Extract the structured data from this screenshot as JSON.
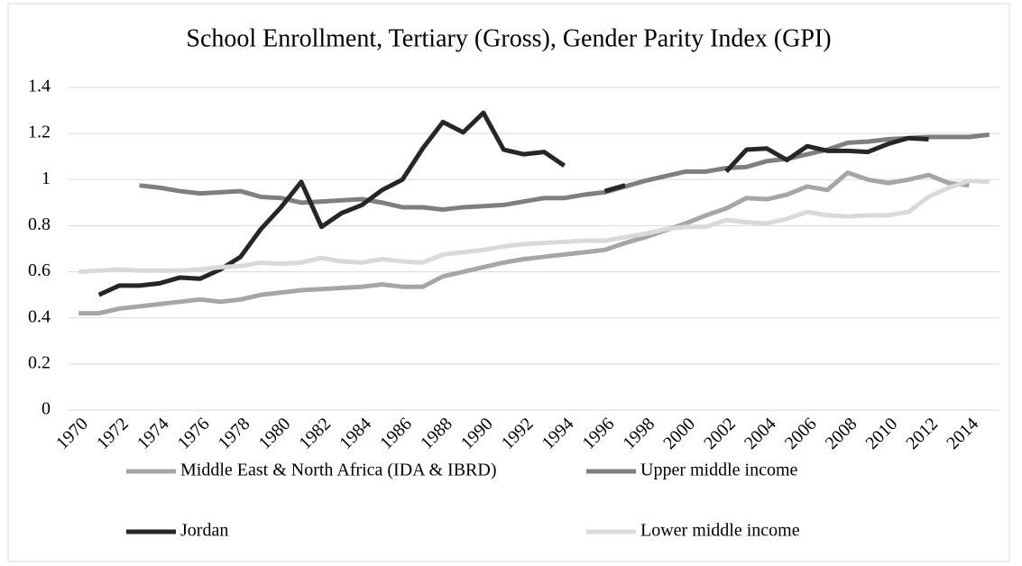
{
  "chart_data": {
    "type": "line",
    "title": "School Enrollment, Tertiary (Gross), Gender Parity Index (GPI)",
    "x": [
      1970,
      1971,
      1972,
      1973,
      1974,
      1975,
      1976,
      1977,
      1978,
      1979,
      1980,
      1981,
      1982,
      1983,
      1984,
      1985,
      1986,
      1987,
      1988,
      1989,
      1990,
      1991,
      1992,
      1993,
      1994,
      1995,
      1996,
      1997,
      1998,
      1999,
      2000,
      2001,
      2002,
      2003,
      2004,
      2005,
      2006,
      2007,
      2008,
      2009,
      2010,
      2011,
      2012,
      2013,
      2014,
      2015
    ],
    "xlim": [
      1969.5,
      2015.5
    ],
    "xticks": [
      1970,
      1972,
      1974,
      1976,
      1978,
      1980,
      1982,
      1984,
      1986,
      1988,
      1990,
      1992,
      1994,
      1996,
      1998,
      2000,
      2002,
      2004,
      2006,
      2008,
      2010,
      2012,
      2014
    ],
    "ylim": [
      0,
      1.4
    ],
    "yticks": [
      0,
      0.2,
      0.4,
      0.6,
      0.8,
      1,
      1.2,
      1.4
    ],
    "grid": true,
    "legend": "bottom",
    "series": [
      {
        "name": "Middle East & North Africa (IDA & IBRD)",
        "color": "#a6a6a6",
        "values": [
          0.42,
          0.42,
          0.44,
          0.45,
          0.46,
          0.47,
          0.48,
          0.47,
          0.48,
          0.5,
          0.51,
          0.52,
          0.525,
          0.53,
          0.535,
          0.545,
          0.535,
          0.535,
          0.58,
          0.6,
          0.62,
          0.64,
          0.655,
          0.665,
          0.675,
          0.685,
          0.695,
          0.725,
          0.75,
          0.78,
          0.81,
          0.845,
          0.875,
          0.92,
          0.915,
          0.935,
          0.97,
          0.955,
          1.03,
          1.0,
          0.985,
          1.0,
          1.02,
          0.985,
          0.975,
          null
        ]
      },
      {
        "name": "Upper middle income",
        "color": "#7f7f7f",
        "values": [
          null,
          null,
          null,
          0.975,
          0.965,
          0.95,
          0.94,
          0.945,
          0.95,
          0.925,
          0.92,
          0.9,
          0.905,
          0.91,
          0.915,
          0.9,
          0.88,
          0.88,
          0.87,
          0.88,
          0.885,
          0.89,
          0.905,
          0.92,
          0.92,
          0.935,
          0.945,
          0.97,
          0.995,
          1.015,
          1.035,
          1.035,
          1.05,
          1.055,
          1.08,
          1.09,
          1.11,
          1.13,
          1.16,
          1.165,
          1.175,
          1.18,
          1.185,
          1.185,
          1.185,
          1.195
        ]
      },
      {
        "name": "Jordan",
        "color": "#262626",
        "values": [
          null,
          0.5,
          0.54,
          0.54,
          0.55,
          0.575,
          0.57,
          0.61,
          0.665,
          0.785,
          0.88,
          0.99,
          0.795,
          0.855,
          0.89,
          0.955,
          1.0,
          1.135,
          1.25,
          1.205,
          1.29,
          1.13,
          1.11,
          1.12,
          1.06,
          null,
          0.95,
          0.975,
          null,
          null,
          null,
          null,
          1.035,
          1.13,
          1.135,
          1.085,
          1.145,
          1.125,
          1.125,
          1.12,
          1.155,
          1.18,
          1.175,
          null,
          null,
          null
        ]
      },
      {
        "name": "Lower middle income",
        "color": "#d9d9d9",
        "values": [
          0.6,
          0.605,
          0.61,
          0.605,
          0.605,
          0.605,
          0.61,
          0.62,
          0.625,
          0.64,
          0.635,
          0.64,
          0.66,
          0.645,
          0.64,
          0.655,
          0.645,
          0.64,
          0.675,
          0.685,
          0.695,
          0.71,
          0.72,
          0.725,
          0.73,
          0.735,
          0.735,
          0.75,
          0.765,
          0.785,
          0.795,
          0.795,
          0.825,
          0.815,
          0.81,
          0.83,
          0.86,
          0.845,
          0.84,
          0.845,
          0.845,
          0.86,
          0.925,
          0.965,
          0.995,
          0.99
        ]
      }
    ]
  }
}
